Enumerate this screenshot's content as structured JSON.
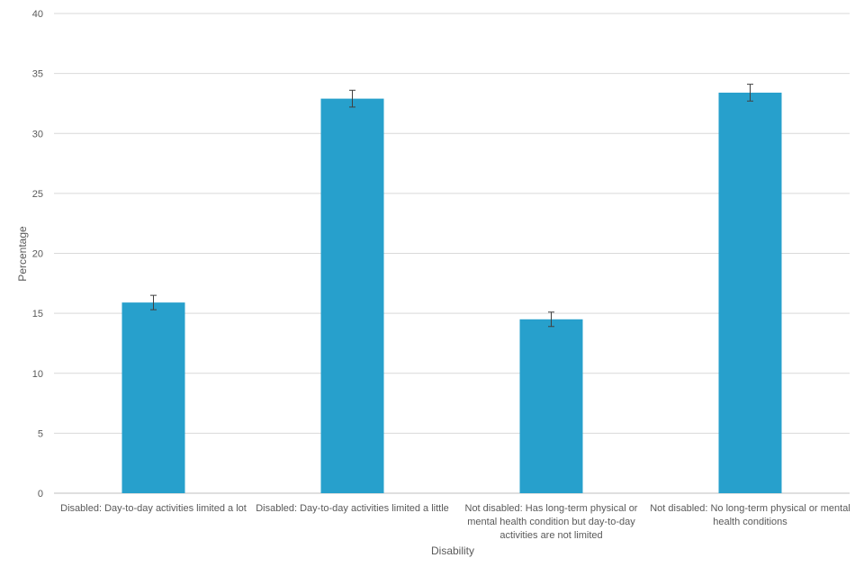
{
  "chart_data": {
    "type": "bar",
    "title": "",
    "xlabel": "Disability",
    "ylabel": "Percentage",
    "ylim": [
      0,
      40
    ],
    "yticks": [
      0,
      5,
      10,
      15,
      20,
      25,
      30,
      35,
      40
    ],
    "grid": true,
    "legend": "none",
    "bar_color": "#27a0cc",
    "categories": [
      [
        "Disabled: Day-to-day activities limited a lot"
      ],
      [
        "Disabled: Day-to-day activities limited a little"
      ],
      [
        "Not disabled: Has long-term physical or",
        "mental health condition but day-to-day",
        "activities are not limited"
      ],
      [
        "Not disabled: No long-term physical or mental",
        "health conditions"
      ]
    ],
    "values": [
      15.9,
      32.9,
      14.5,
      33.4
    ],
    "error_low": [
      15.3,
      32.2,
      13.9,
      32.7
    ],
    "error_high": [
      16.5,
      33.6,
      15.1,
      34.1
    ]
  }
}
